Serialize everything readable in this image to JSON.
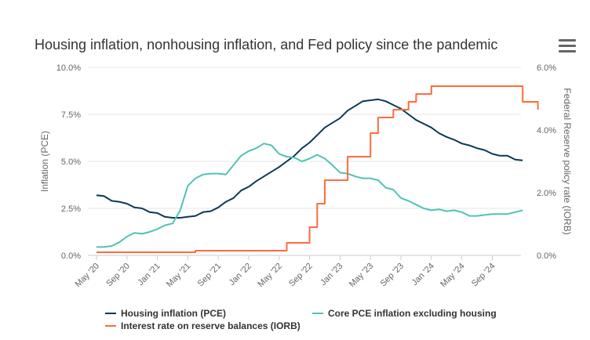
{
  "chart_data": {
    "type": "line",
    "title": "Housing inflation, nonhousing inflation, and Fed policy since the pandemic",
    "ylabel": "Inflation (PCE)",
    "y2label": "Federal Reserve policy rate (IORB)",
    "ylim": [
      0,
      10
    ],
    "y2lim": [
      0,
      6
    ],
    "yticks": [
      "0.0%",
      "2.5%",
      "5.0%",
      "7.5%",
      "10.0%"
    ],
    "y2ticks": [
      "0.0%",
      "2.0%",
      "4.0%",
      "6.0%"
    ],
    "xticks": [
      "May '20",
      "Sep '20",
      "Jan '21",
      "May '21",
      "Sep '21",
      "Jan '22",
      "May '22",
      "Sep '22",
      "Jan '23",
      "May '23",
      "Sep '23",
      "Jan '24",
      "May '24",
      "Sep '24"
    ],
    "x_start": "2020-05",
    "legend_position": "bottom",
    "colors": {
      "housing": "#0b3954",
      "core": "#4fc3b4",
      "iorb": "#ff6b3d"
    },
    "series": [
      {
        "name": "Housing inflation (PCE)",
        "axis": "left",
        "values": [
          3.2,
          3.15,
          2.9,
          2.85,
          2.75,
          2.55,
          2.5,
          2.3,
          2.25,
          2.05,
          2.0,
          2.0,
          2.05,
          2.1,
          2.3,
          2.35,
          2.55,
          2.85,
          3.05,
          3.45,
          3.65,
          3.95,
          4.2,
          4.45,
          4.7,
          5.0,
          5.3,
          5.7,
          6.0,
          6.4,
          6.8,
          7.05,
          7.3,
          7.7,
          7.95,
          8.2,
          8.25,
          8.3,
          8.2,
          8.0,
          7.8,
          7.5,
          7.2,
          7.0,
          6.8,
          6.5,
          6.3,
          6.15,
          5.95,
          5.85,
          5.7,
          5.6,
          5.4,
          5.3,
          5.3,
          5.1,
          5.05
        ]
      },
      {
        "name": "Core PCE inflation excluding housing",
        "axis": "left",
        "values": [
          0.45,
          0.45,
          0.5,
          0.7,
          1.0,
          1.2,
          1.15,
          1.25,
          1.4,
          1.6,
          1.7,
          2.4,
          3.7,
          4.1,
          4.3,
          4.35,
          4.35,
          4.3,
          4.8,
          5.3,
          5.55,
          5.7,
          5.95,
          5.85,
          5.4,
          5.25,
          5.2,
          5.0,
          5.15,
          5.35,
          5.15,
          4.8,
          4.4,
          4.35,
          4.2,
          4.1,
          4.1,
          4.0,
          3.6,
          3.5,
          3.05,
          2.9,
          2.7,
          2.5,
          2.4,
          2.45,
          2.35,
          2.4,
          2.3,
          2.1,
          2.1,
          2.15,
          2.2,
          2.2,
          2.2,
          2.3,
          2.4
        ]
      },
      {
        "name": "Interest rate on reserve balances (IORB)",
        "axis": "right",
        "step": true,
        "values": [
          0.1,
          0.1,
          0.1,
          0.1,
          0.1,
          0.1,
          0.1,
          0.1,
          0.1,
          0.1,
          0.1,
          0.1,
          0.1,
          0.15,
          0.15,
          0.15,
          0.15,
          0.15,
          0.15,
          0.15,
          0.15,
          0.15,
          0.15,
          0.15,
          0.15,
          0.4,
          0.4,
          0.4,
          0.9,
          1.65,
          2.4,
          2.4,
          2.4,
          3.15,
          3.15,
          3.15,
          3.9,
          4.4,
          4.4,
          4.65,
          4.65,
          4.9,
          5.15,
          5.15,
          5.4,
          5.4,
          5.4,
          5.4,
          5.4,
          5.4,
          5.4,
          5.4,
          5.4,
          5.4,
          5.4,
          5.4,
          4.9,
          4.9,
          4.65
        ]
      }
    ]
  }
}
